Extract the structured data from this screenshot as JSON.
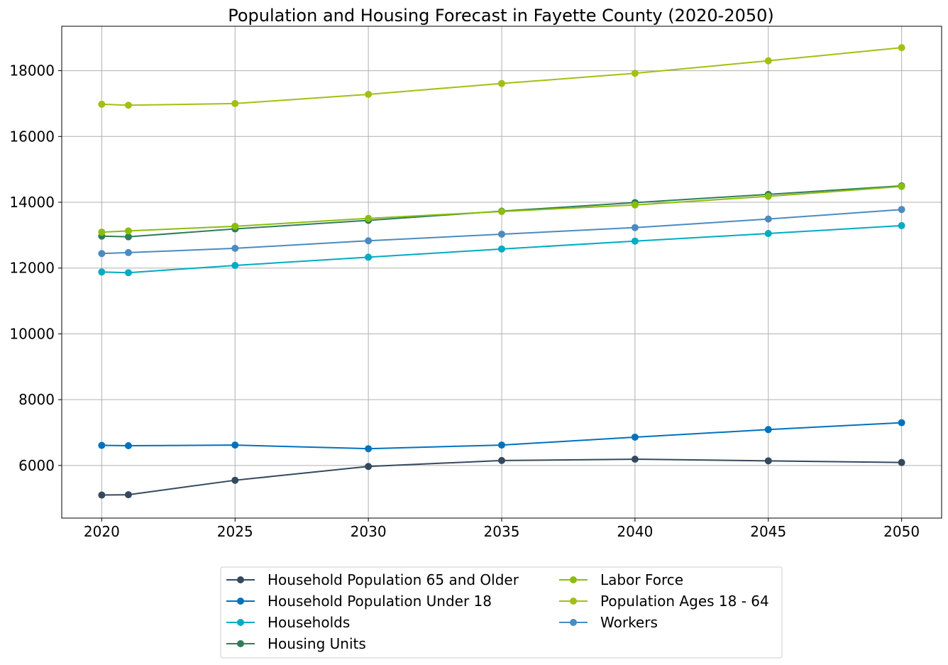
{
  "chart_data": {
    "type": "line",
    "title": "Population and Housing Forecast in Fayette County (2020-2050)",
    "xlabel": "",
    "ylabel": "",
    "x": [
      2020,
      2021,
      2025,
      2030,
      2035,
      2040,
      2045,
      2050
    ],
    "xticks": [
      2020,
      2025,
      2030,
      2035,
      2040,
      2045,
      2050
    ],
    "yticks": [
      6000,
      8000,
      10000,
      12000,
      14000,
      16000,
      18000
    ],
    "xlim": [
      2018.5,
      2051.5
    ],
    "ylim": [
      4400,
      19350
    ],
    "grid": true,
    "legend_position": "bottom-center",
    "series": [
      {
        "name": "Household Population 65 and Older",
        "color": "#34495e",
        "values": [
          5100,
          5110,
          5550,
          5970,
          6150,
          6190,
          6140,
          6090
        ]
      },
      {
        "name": "Household Population Under 18",
        "color": "#0072bd",
        "values": [
          6610,
          6600,
          6620,
          6510,
          6620,
          6860,
          7090,
          7300
        ]
      },
      {
        "name": "Households",
        "color": "#00acc1",
        "values": [
          11880,
          11860,
          12080,
          12330,
          12580,
          12820,
          13050,
          13290
        ]
      },
      {
        "name": "Housing Units",
        "color": "#2e7d5b",
        "values": [
          12970,
          12950,
          13190,
          13450,
          13730,
          13990,
          14240,
          14500
        ]
      },
      {
        "name": "Labor Force",
        "color": "#8bbd0b",
        "values": [
          13090,
          13130,
          13270,
          13510,
          13720,
          13920,
          14180,
          14480
        ]
      },
      {
        "name": "Population Ages 18 - 64",
        "color": "#a2c012",
        "values": [
          16980,
          16950,
          17000,
          17280,
          17610,
          17920,
          18300,
          18700
        ]
      },
      {
        "name": "Workers",
        "color": "#4b8bc0",
        "values": [
          12440,
          12470,
          12600,
          12830,
          13030,
          13230,
          13490,
          13780
        ]
      }
    ]
  }
}
